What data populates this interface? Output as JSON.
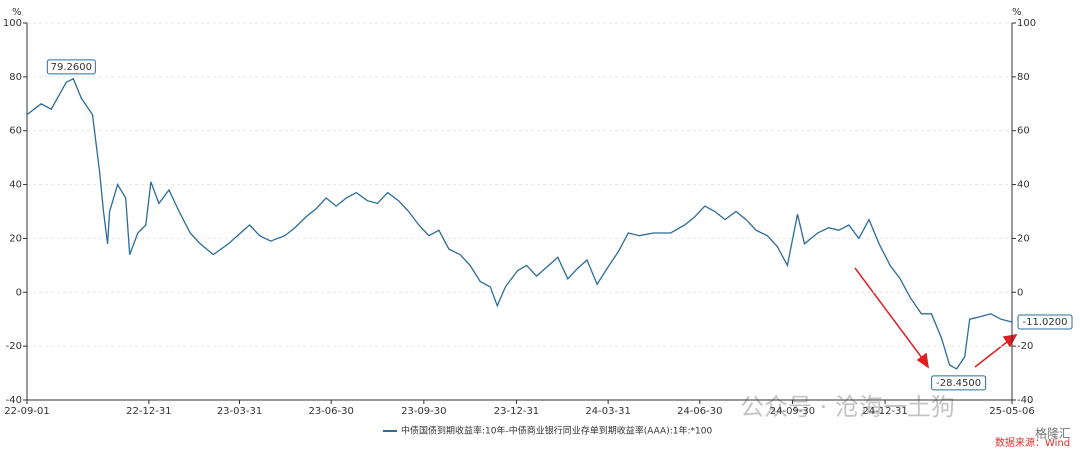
{
  "chart_data": {
    "type": "line",
    "unit_left": "%",
    "unit_right": "%",
    "x": [
      "22-09-01",
      "22-09-15",
      "22-09-25",
      "22-10-10",
      "22-10-17",
      "22-10-25",
      "22-11-05",
      "22-11-12",
      "22-11-16",
      "22-11-20",
      "22-11-22",
      "22-11-30",
      "22-12-08",
      "22-12-12",
      "22-12-20",
      "22-12-28",
      "23-01-02",
      "23-01-10",
      "23-01-20",
      "23-01-30",
      "23-02-10",
      "23-02-20",
      "23-03-05",
      "23-03-20",
      "23-04-01",
      "23-04-10",
      "23-04-20",
      "23-05-01",
      "23-05-15",
      "23-05-25",
      "23-06-05",
      "23-06-15",
      "23-06-25",
      "23-07-05",
      "23-07-15",
      "23-07-25",
      "23-08-05",
      "23-08-15",
      "23-08-25",
      "23-09-05",
      "23-09-15",
      "23-09-25",
      "23-10-05",
      "23-10-15",
      "23-10-25",
      "23-11-05",
      "23-11-15",
      "23-11-25",
      "23-12-05",
      "23-12-12",
      "23-12-20",
      "24-01-01",
      "24-01-10",
      "24-01-20",
      "24-02-01",
      "24-02-10",
      "24-02-20",
      "24-03-01",
      "24-03-10",
      "24-03-20",
      "24-04-01",
      "24-04-10",
      "24-04-20",
      "24-05-01",
      "24-05-15",
      "24-06-01",
      "24-06-15",
      "24-06-25",
      "24-07-05",
      "24-07-15",
      "24-07-25",
      "24-08-05",
      "24-08-15",
      "24-08-25",
      "24-09-05",
      "24-09-15",
      "24-09-25",
      "24-10-05",
      "24-10-12",
      "24-10-25",
      "24-11-05",
      "24-11-15",
      "24-11-25",
      "24-12-05",
      "24-12-15",
      "24-12-25",
      "25-01-05",
      "25-01-15",
      "25-01-25",
      "25-02-05",
      "25-02-15",
      "25-02-25",
      "25-03-05",
      "25-03-12",
      "25-03-20",
      "25-03-25",
      "25-04-05",
      "25-04-15",
      "25-04-25",
      "25-05-06"
    ],
    "series": [
      {
        "name": "中债国债到期收益率:10年-中债商业银行同业存单到期收益率(AAA):1年:*100",
        "color": "#2b6c99",
        "values": [
          66,
          70,
          68,
          78,
          79.26,
          72,
          66,
          45,
          30,
          18,
          30,
          40,
          35,
          14,
          22,
          25,
          41,
          33,
          38,
          30,
          22,
          18,
          14,
          18,
          22,
          25,
          21,
          19,
          21,
          24,
          28,
          31,
          35,
          32,
          35,
          37,
          34,
          33,
          37,
          34,
          30,
          25,
          21,
          23,
          16,
          14,
          10,
          4,
          2,
          -5,
          2,
          8,
          10,
          6,
          10,
          13,
          5,
          9,
          12,
          3,
          10,
          15,
          22,
          21,
          22,
          22,
          25,
          28,
          32,
          30,
          27,
          30,
          27,
          23,
          21,
          17,
          10,
          29,
          18,
          22,
          24,
          23,
          25,
          20,
          27,
          18,
          10,
          5,
          -2,
          -8,
          -8,
          -17,
          -27,
          -28.45,
          -24,
          -10,
          -9,
          -8,
          -10,
          -11.02
        ]
      }
    ],
    "ylim": [
      -40,
      100
    ],
    "yticks": [
      -40,
      -20,
      0,
      20,
      40,
      60,
      80,
      100
    ],
    "y2lim": [
      -40,
      100
    ],
    "y2ticks": [
      -40,
      -20,
      0,
      20,
      40,
      60,
      80,
      100
    ],
    "xticks": [
      "22-09-01",
      "22-12-31",
      "23-03-31",
      "23-06-30",
      "23-09-30",
      "23-12-31",
      "24-03-31",
      "24-06-30",
      "24-09-30",
      "24-12-31",
      "25-05-06"
    ],
    "grid": true,
    "annotations": [
      {
        "index": 4,
        "label": "79.2600"
      },
      {
        "index": 93,
        "label": "-28.4500"
      },
      {
        "index": 99,
        "label": "-11.0200"
      }
    ],
    "watermark": "公众号 · 沧海一土狗",
    "source": "数据来源：Wind",
    "logo": "格隆汇"
  }
}
